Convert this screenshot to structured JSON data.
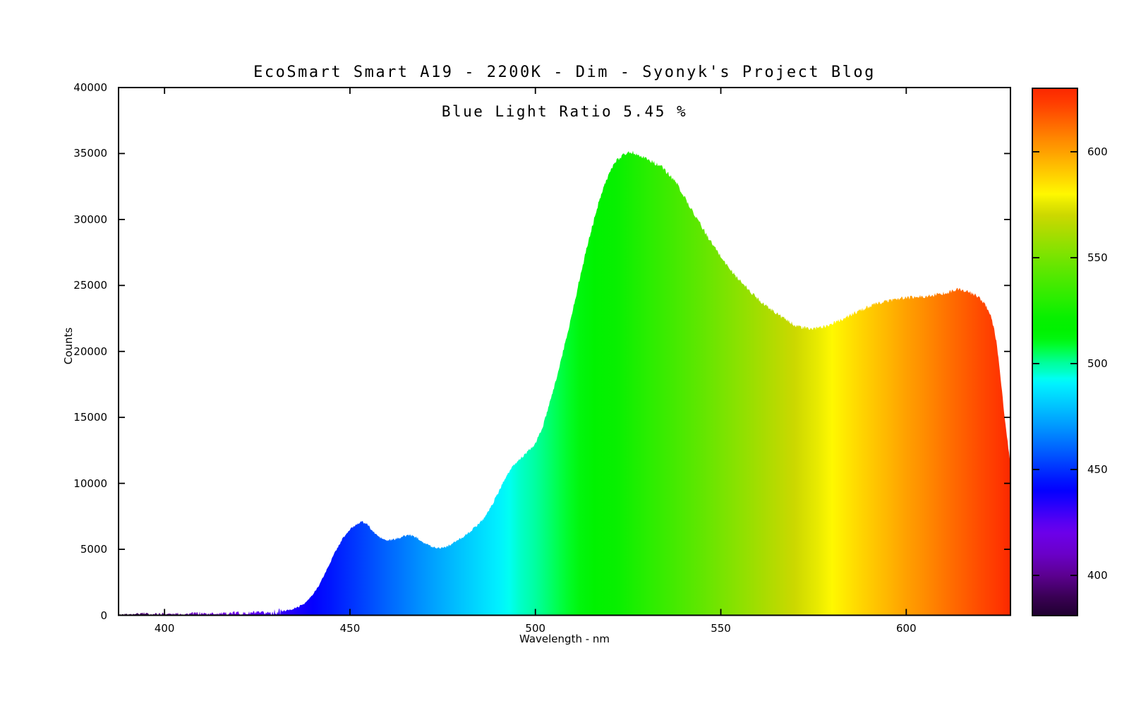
{
  "page": {
    "background": "#ffffff"
  },
  "chart_data": {
    "type": "area",
    "title": "EcoSmart Smart A19 - 2200K - Dim - Syonyk's Project Blog",
    "annotation": "Blue Light Ratio 5.45 %",
    "xlabel": "Wavelength - nm",
    "ylabel": "Counts",
    "xlim": [
      387.6,
      628.1
    ],
    "ylim": [
      0,
      40000
    ],
    "x_ticks": [
      400,
      450,
      500,
      550,
      600
    ],
    "y_ticks": [
      0,
      5000,
      10000,
      15000,
      20000,
      25000,
      30000,
      35000,
      40000
    ],
    "grid": false,
    "legend": null,
    "colorbar": {
      "min": 381,
      "max": 630,
      "ticks": [
        400,
        450,
        500,
        550,
        600
      ]
    },
    "series": [
      {
        "name": "spectrum",
        "points": [
          [
            388,
            60
          ],
          [
            390,
            90
          ],
          [
            392,
            70
          ],
          [
            394,
            150
          ],
          [
            396,
            80
          ],
          [
            398,
            110
          ],
          [
            400,
            130
          ],
          [
            402,
            90
          ],
          [
            404,
            120
          ],
          [
            406,
            100
          ],
          [
            408,
            140
          ],
          [
            410,
            150
          ],
          [
            412,
            110
          ],
          [
            414,
            160
          ],
          [
            416,
            120
          ],
          [
            418,
            170
          ],
          [
            420,
            190
          ],
          [
            422,
            140
          ],
          [
            424,
            200
          ],
          [
            426,
            160
          ],
          [
            428,
            210
          ],
          [
            430,
            250
          ],
          [
            432,
            320
          ],
          [
            434,
            430
          ],
          [
            436,
            620
          ],
          [
            438,
            950
          ],
          [
            440,
            1550
          ],
          [
            442,
            2450
          ],
          [
            444,
            3600
          ],
          [
            446,
            4800
          ],
          [
            448,
            5800
          ],
          [
            450,
            6500
          ],
          [
            452,
            6950
          ],
          [
            453,
            7100
          ],
          [
            454,
            7000
          ],
          [
            455,
            6800
          ],
          [
            456,
            6400
          ],
          [
            458,
            5900
          ],
          [
            460,
            5650
          ],
          [
            462,
            5750
          ],
          [
            464,
            5950
          ],
          [
            466,
            6100
          ],
          [
            468,
            5900
          ],
          [
            470,
            5500
          ],
          [
            472,
            5200
          ],
          [
            474,
            5100
          ],
          [
            476,
            5200
          ],
          [
            478,
            5500
          ],
          [
            480,
            5850
          ],
          [
            482,
            6250
          ],
          [
            484,
            6750
          ],
          [
            486,
            7300
          ],
          [
            488,
            8200
          ],
          [
            490,
            9300
          ],
          [
            492,
            10500
          ],
          [
            494,
            11300
          ],
          [
            496,
            11900
          ],
          [
            498,
            12400
          ],
          [
            500,
            13000
          ],
          [
            502,
            14300
          ],
          [
            504,
            16200
          ],
          [
            506,
            18300
          ],
          [
            508,
            20600
          ],
          [
            510,
            23000
          ],
          [
            512,
            25600
          ],
          [
            514,
            28000
          ],
          [
            516,
            30200
          ],
          [
            518,
            32200
          ],
          [
            520,
            33600
          ],
          [
            522,
            34500
          ],
          [
            524,
            35000
          ],
          [
            526,
            35100
          ],
          [
            528,
            34900
          ],
          [
            530,
            34600
          ],
          [
            532,
            34300
          ],
          [
            534,
            34000
          ],
          [
            536,
            33400
          ],
          [
            538,
            32800
          ],
          [
            540,
            31800
          ],
          [
            542,
            30800
          ],
          [
            544,
            29900
          ],
          [
            546,
            28900
          ],
          [
            548,
            28000
          ],
          [
            550,
            27200
          ],
          [
            552,
            26400
          ],
          [
            554,
            25700
          ],
          [
            556,
            25100
          ],
          [
            558,
            24500
          ],
          [
            560,
            24000
          ],
          [
            562,
            23500
          ],
          [
            564,
            23100
          ],
          [
            566,
            22700
          ],
          [
            568,
            22300
          ],
          [
            570,
            22000
          ],
          [
            572,
            21800
          ],
          [
            574,
            21700
          ],
          [
            576,
            21750
          ],
          [
            578,
            21900
          ],
          [
            580,
            22100
          ],
          [
            582,
            22350
          ],
          [
            584,
            22600
          ],
          [
            586,
            22900
          ],
          [
            588,
            23150
          ],
          [
            590,
            23400
          ],
          [
            592,
            23600
          ],
          [
            594,
            23750
          ],
          [
            596,
            23900
          ],
          [
            598,
            24000
          ],
          [
            600,
            24050
          ],
          [
            602,
            24100
          ],
          [
            604,
            24150
          ],
          [
            606,
            24200
          ],
          [
            608,
            24300
          ],
          [
            610,
            24400
          ],
          [
            612,
            24550
          ],
          [
            614,
            24700
          ],
          [
            615,
            24650
          ],
          [
            616,
            24550
          ],
          [
            618,
            24350
          ],
          [
            620,
            24000
          ],
          [
            622,
            23200
          ],
          [
            623,
            22500
          ],
          [
            624,
            21300
          ],
          [
            625,
            19200
          ],
          [
            626,
            16500
          ],
          [
            627,
            13800
          ],
          [
            628,
            11700
          ]
        ]
      }
    ],
    "spectrum_colors": [
      {
        "nm": 381,
        "color": "#200030"
      },
      {
        "nm": 390,
        "color": "#3a0055"
      },
      {
        "nm": 400,
        "color": "#5c0090"
      },
      {
        "nm": 410,
        "color": "#6a00c8"
      },
      {
        "nm": 420,
        "color": "#6c00ea"
      },
      {
        "nm": 425,
        "color": "#5800f2"
      },
      {
        "nm": 430,
        "color": "#3c00f8"
      },
      {
        "nm": 435,
        "color": "#1e00fd"
      },
      {
        "nm": 440,
        "color": "#0400ff"
      },
      {
        "nm": 445,
        "color": "#0016ff"
      },
      {
        "nm": 450,
        "color": "#0030ff"
      },
      {
        "nm": 455,
        "color": "#004aff"
      },
      {
        "nm": 460,
        "color": "#0064ff"
      },
      {
        "nm": 465,
        "color": "#007dff"
      },
      {
        "nm": 470,
        "color": "#0096ff"
      },
      {
        "nm": 475,
        "color": "#00adff"
      },
      {
        "nm": 480,
        "color": "#00c4ff"
      },
      {
        "nm": 485,
        "color": "#00daff"
      },
      {
        "nm": 490,
        "color": "#00f0ff"
      },
      {
        "nm": 493,
        "color": "#00fff2"
      },
      {
        "nm": 496,
        "color": "#00ffc8"
      },
      {
        "nm": 500,
        "color": "#00ffa0"
      },
      {
        "nm": 503,
        "color": "#00ff78"
      },
      {
        "nm": 506,
        "color": "#00ff4e"
      },
      {
        "nm": 509,
        "color": "#00fc28"
      },
      {
        "nm": 512,
        "color": "#00f60d"
      },
      {
        "nm": 516,
        "color": "#00f200"
      },
      {
        "nm": 522,
        "color": "#08f000"
      },
      {
        "nm": 530,
        "color": "#28ee00"
      },
      {
        "nm": 538,
        "color": "#46ea00"
      },
      {
        "nm": 546,
        "color": "#66e600"
      },
      {
        "nm": 554,
        "color": "#88e200"
      },
      {
        "nm": 562,
        "color": "#aadc00"
      },
      {
        "nm": 570,
        "color": "#ccd800"
      },
      {
        "nm": 576,
        "color": "#e8ea00"
      },
      {
        "nm": 580,
        "color": "#fff800"
      },
      {
        "nm": 584,
        "color": "#ffe600"
      },
      {
        "nm": 588,
        "color": "#ffd400"
      },
      {
        "nm": 592,
        "color": "#ffc300"
      },
      {
        "nm": 596,
        "color": "#ffb200"
      },
      {
        "nm": 600,
        "color": "#ffa000"
      },
      {
        "nm": 605,
        "color": "#ff8c00"
      },
      {
        "nm": 610,
        "color": "#ff7600"
      },
      {
        "nm": 615,
        "color": "#ff6000"
      },
      {
        "nm": 620,
        "color": "#ff4a00"
      },
      {
        "nm": 625,
        "color": "#ff3600"
      },
      {
        "nm": 630,
        "color": "#fa2800"
      }
    ],
    "frame_color": "#000000"
  }
}
